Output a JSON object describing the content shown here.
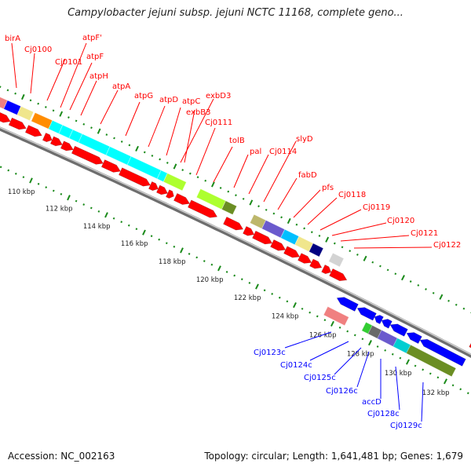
{
  "title": "Campylobacter jejuni subsp. jejuni NCTC 11168, complete geno...",
  "footer": {
    "accession": "Accession: NC_002163",
    "topology": "Topology: circular; Length: 1,641,481 bp; Genes: 1,679"
  },
  "forward_labels": [
    "birA",
    "Cj0100",
    "Cj0101",
    "atpF'",
    "atpF",
    "atpH",
    "atpA",
    "atpG",
    "atpD",
    "atpC",
    "exbD3",
    "exbB3",
    "Cj0111",
    "tolB",
    "pal",
    "Cj0114",
    "slyD",
    "fabD",
    "pfs",
    "Cj0118",
    "Cj0119",
    "Cj0120",
    "Cj0121",
    "Cj0122"
  ],
  "reverse_labels": [
    "Cj0123c",
    "Cj0124c",
    "Cj0125c",
    "Cj0126c",
    "accD",
    "Cj0128c",
    "Cj0129c"
  ],
  "kbp_labels": [
    "110 kbp",
    "112 kbp",
    "114 kbp",
    "116 kbp",
    "118 kbp",
    "120 kbp",
    "122 kbp",
    "124 kbp",
    "126 kbp",
    "128 kbp",
    "130 kbp",
    "132 kbp"
  ],
  "colors": {
    "forward_gene": "#ff0000",
    "reverse_gene": "#0000ff",
    "backbone": "#8c8c8c",
    "tick": "#1a8a1a",
    "forward_label": "#ff0000",
    "reverse_label": "#0000ff"
  }
}
